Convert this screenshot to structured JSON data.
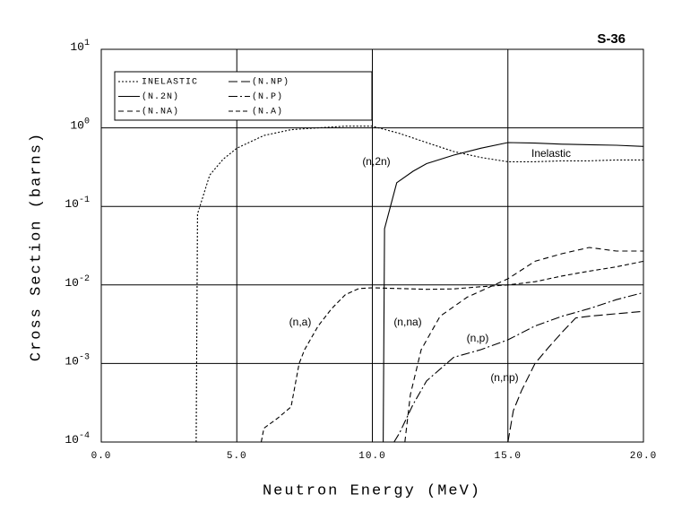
{
  "chart_data": {
    "type": "line",
    "title": "S-36",
    "xlabel": "Neutron Energy (MeV)",
    "ylabel": "Cross Section (barns)",
    "log_y": true,
    "grid": true,
    "legend": "upper left",
    "xlim": [
      0,
      20
    ],
    "xticks": [
      {
        "value": 0,
        "label": "0.0"
      },
      {
        "value": 5,
        "label": "5.0"
      },
      {
        "value": 10,
        "label": "10.0"
      },
      {
        "value": 15,
        "label": "15.0"
      },
      {
        "value": 20,
        "label": "20.0"
      }
    ],
    "ylim": [
      0.0001,
      10
    ],
    "yticks": [
      {
        "value": 0.0001,
        "label": "10",
        "exponent": "-4"
      },
      {
        "value": 0.001,
        "label": "10",
        "exponent": "-3"
      },
      {
        "value": 0.01,
        "label": "10",
        "exponent": "-2"
      },
      {
        "value": 0.1,
        "label": "10",
        "exponent": "-1"
      },
      {
        "value": 1,
        "label": "10",
        "exponent": "0"
      },
      {
        "value": 10,
        "label": "10",
        "exponent": "1"
      }
    ],
    "series": [
      {
        "name": "INELASTIC",
        "color": "#000000",
        "dash": "2,2",
        "x": [
          3.5,
          3.55,
          4,
          4.5,
          5,
          6,
          7,
          8,
          9,
          10,
          11,
          12,
          13,
          14,
          15,
          16,
          17,
          18,
          19,
          20
        ],
        "values": [
          0.0001,
          0.08,
          0.25,
          0.4,
          0.55,
          0.8,
          0.95,
          1.0,
          1.05,
          1.05,
          0.85,
          0.65,
          0.5,
          0.42,
          0.37,
          0.37,
          0.38,
          0.38,
          0.39,
          0.39
        ]
      },
      {
        "name": "(N.2N)",
        "color": "#000000",
        "dash": "",
        "x": [
          10.4,
          10.45,
          10.9,
          11.5,
          12,
          13,
          14,
          15,
          16,
          17,
          18,
          19,
          20
        ],
        "values": [
          0.0001,
          0.052,
          0.2,
          0.28,
          0.35,
          0.45,
          0.55,
          0.65,
          0.64,
          0.62,
          0.61,
          0.6,
          0.58
        ]
      },
      {
        "name": "(N.NA)",
        "color": "#000000",
        "dash": "6,4",
        "x": [
          11.2,
          11.4,
          11.8,
          12.5,
          13.5,
          14.5,
          15,
          16,
          17,
          18,
          19,
          20
        ],
        "values": [
          0.0001,
          0.0004,
          0.0015,
          0.004,
          0.007,
          0.01,
          0.012,
          0.02,
          0.025,
          0.03,
          0.027,
          0.027
        ]
      },
      {
        "name": "(N.NP)",
        "color": "#000000",
        "dash": "10,4",
        "x": [
          15,
          15.2,
          15.5,
          16,
          16.5,
          17,
          17.5,
          18,
          19,
          20
        ],
        "values": [
          0.0001,
          0.00025,
          0.00045,
          0.001,
          0.0016,
          0.0025,
          0.0038,
          0.004,
          0.0043,
          0.0046
        ]
      },
      {
        "name": "(N.P)",
        "color": "#000000",
        "dash": "10,3,2,3",
        "x": [
          10.8,
          11,
          11.5,
          12,
          13,
          14,
          15,
          16,
          17,
          18,
          19,
          20
        ],
        "values": [
          0.0001,
          0.00013,
          0.0003,
          0.0006,
          0.0012,
          0.0015,
          0.002,
          0.003,
          0.004,
          0.005,
          0.0065,
          0.008
        ]
      },
      {
        "name": "(N.A)",
        "color": "#000000",
        "dash": "5,3",
        "x": [
          5.9,
          6,
          6.5,
          7,
          7.3,
          7.5,
          8,
          8.5,
          9,
          9.5,
          10,
          11,
          12,
          13,
          14,
          15,
          16,
          17,
          18,
          19,
          20
        ],
        "values": [
          0.0001,
          0.00015,
          0.0002,
          0.00028,
          0.001,
          0.0015,
          0.003,
          0.005,
          0.0075,
          0.009,
          0.0092,
          0.009,
          0.0088,
          0.0089,
          0.0095,
          0.01,
          0.011,
          0.013,
          0.015,
          0.017,
          0.02
        ]
      }
    ],
    "annotations": [
      "Inelastic",
      "(n,2n)",
      "(n,a)",
      "(n,na)",
      "(n,p)",
      "(n,np)"
    ]
  }
}
